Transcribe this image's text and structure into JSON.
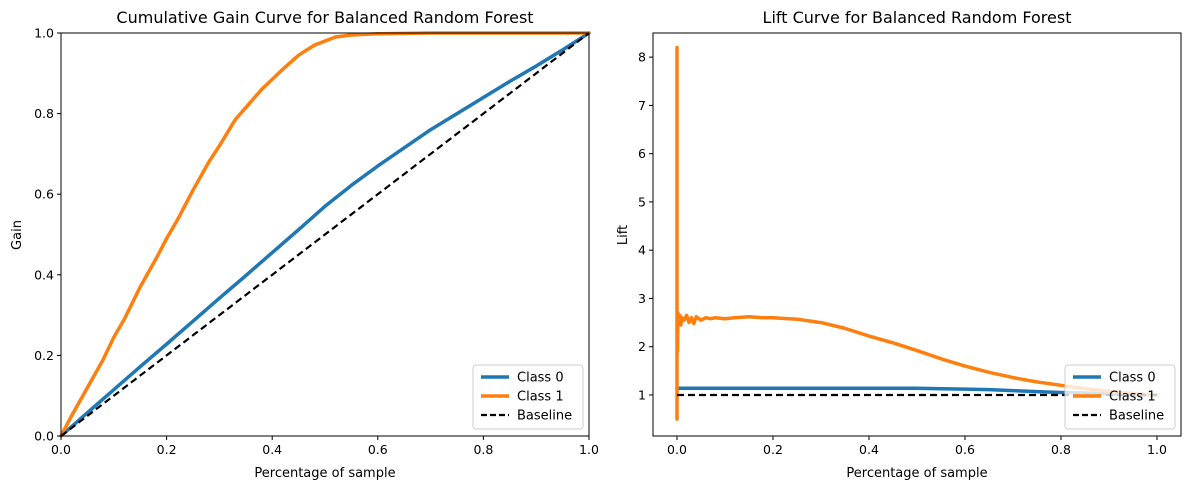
{
  "chart_data": [
    {
      "type": "line",
      "title": "Cumulative Gain Curve for Balanced Random Forest",
      "xlabel": "Percentage of sample",
      "ylabel": "Gain",
      "xlim": [
        0.0,
        1.0
      ],
      "ylim": [
        0.0,
        1.0
      ],
      "xticks": [
        "0.0",
        "0.2",
        "0.4",
        "0.6",
        "0.8",
        "1.0"
      ],
      "yticks": [
        "0.0",
        "0.2",
        "0.4",
        "0.6",
        "0.8",
        "1.0"
      ],
      "legend_position": "lower-right",
      "series": [
        {
          "name": "Class 0",
          "color": "#1f77b4",
          "x": [
            0.0,
            0.05,
            0.1,
            0.15,
            0.2,
            0.25,
            0.3,
            0.35,
            0.4,
            0.45,
            0.5,
            0.55,
            0.6,
            0.65,
            0.7,
            0.75,
            0.8,
            0.85,
            0.9,
            0.95,
            1.0
          ],
          "y": [
            0.0,
            0.058,
            0.115,
            0.172,
            0.228,
            0.285,
            0.342,
            0.398,
            0.455,
            0.512,
            0.57,
            0.622,
            0.67,
            0.715,
            0.76,
            0.8,
            0.84,
            0.88,
            0.918,
            0.958,
            1.0
          ]
        },
        {
          "name": "Class 1",
          "color": "#ff7f0e",
          "x": [
            0.0,
            0.02,
            0.05,
            0.08,
            0.1,
            0.12,
            0.15,
            0.18,
            0.2,
            0.22,
            0.25,
            0.28,
            0.3,
            0.33,
            0.35,
            0.38,
            0.4,
            0.42,
            0.45,
            0.48,
            0.5,
            0.52,
            0.55,
            0.6,
            0.7,
            0.8,
            0.9,
            1.0
          ],
          "y": [
            0.0,
            0.05,
            0.12,
            0.19,
            0.245,
            0.29,
            0.37,
            0.44,
            0.49,
            0.535,
            0.61,
            0.68,
            0.72,
            0.785,
            0.815,
            0.86,
            0.885,
            0.91,
            0.945,
            0.97,
            0.98,
            0.99,
            0.995,
            0.998,
            1.0,
            1.0,
            1.0,
            1.0
          ]
        },
        {
          "name": "Baseline",
          "color": "#000000",
          "dashed": true,
          "x": [
            0.0,
            1.0
          ],
          "y": [
            0.0,
            1.0
          ]
        }
      ]
    },
    {
      "type": "line",
      "title": "Lift Curve for Balanced Random Forest",
      "xlabel": "Percentage of sample",
      "ylabel": "Lift",
      "xlim": [
        -0.05,
        1.05
      ],
      "ylim": [
        0.15,
        8.5
      ],
      "xticks": [
        "0.0",
        "0.2",
        "0.4",
        "0.6",
        "0.8",
        "1.0"
      ],
      "yticks": [
        "1",
        "2",
        "3",
        "4",
        "5",
        "6",
        "7",
        "8"
      ],
      "legend_position": "lower-right",
      "series": [
        {
          "name": "Class 0",
          "color": "#1f77b4",
          "x": [
            0.0,
            0.1,
            0.2,
            0.3,
            0.4,
            0.5,
            0.55,
            0.6,
            0.65,
            0.7,
            0.75,
            0.8,
            0.85,
            0.9,
            0.95,
            1.0
          ],
          "y": [
            1.14,
            1.14,
            1.14,
            1.14,
            1.14,
            1.14,
            1.13,
            1.12,
            1.11,
            1.09,
            1.07,
            1.05,
            1.04,
            1.02,
            1.01,
            1.0
          ]
        },
        {
          "name": "Class 1",
          "color": "#ff7f0e",
          "x": [
            0.0,
            0.0,
            0.0,
            0.001,
            0.002,
            0.004,
            0.006,
            0.008,
            0.01,
            0.015,
            0.02,
            0.025,
            0.03,
            0.035,
            0.04,
            0.05,
            0.06,
            0.07,
            0.08,
            0.1,
            0.12,
            0.15,
            0.18,
            0.2,
            0.25,
            0.3,
            0.35,
            0.4,
            0.45,
            0.5,
            0.55,
            0.6,
            0.65,
            0.7,
            0.75,
            0.8,
            0.85,
            0.9,
            0.95,
            1.0
          ],
          "y": [
            8.2,
            0.5,
            2.0,
            1.9,
            2.7,
            2.5,
            2.65,
            2.45,
            2.6,
            2.55,
            2.65,
            2.5,
            2.6,
            2.48,
            2.62,
            2.55,
            2.6,
            2.58,
            2.6,
            2.58,
            2.6,
            2.62,
            2.6,
            2.6,
            2.57,
            2.5,
            2.38,
            2.22,
            2.08,
            1.92,
            1.75,
            1.6,
            1.47,
            1.36,
            1.27,
            1.2,
            1.13,
            1.08,
            1.03,
            1.0
          ]
        },
        {
          "name": "Baseline",
          "color": "#000000",
          "dashed": true,
          "x": [
            0.0,
            1.0
          ],
          "y": [
            1.0,
            1.0
          ]
        }
      ]
    }
  ]
}
